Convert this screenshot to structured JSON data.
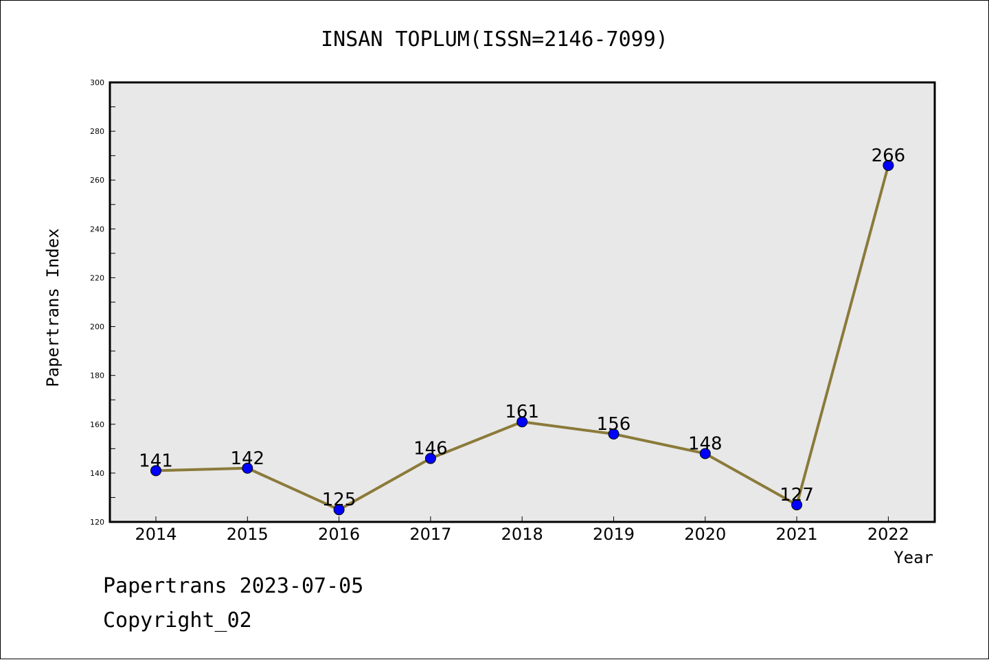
{
  "chart_data": {
    "type": "line",
    "title": "INSAN TOPLUM(ISSN=2146-7099)",
    "xlabel": "Year",
    "ylabel": "Papertrans Index",
    "x": [
      "2014",
      "2015",
      "2016",
      "2017",
      "2018",
      "2019",
      "2020",
      "2021",
      "2022"
    ],
    "series": [
      {
        "values": [
          141,
          142,
          125,
          146,
          161,
          156,
          148,
          127,
          266
        ]
      }
    ],
    "ylim": [
      120,
      300
    ],
    "yticks": [
      "120",
      "140",
      "160",
      "180",
      "200",
      "220",
      "240",
      "260",
      "280",
      "300"
    ],
    "grid": false,
    "colors": {
      "line": "#8b7a3a",
      "marker": "#0000ff",
      "plot_background": "#e8e8e8"
    }
  },
  "footer": {
    "line1": "Papertrans 2023-07-05",
    "line2": "Copyright_02"
  }
}
